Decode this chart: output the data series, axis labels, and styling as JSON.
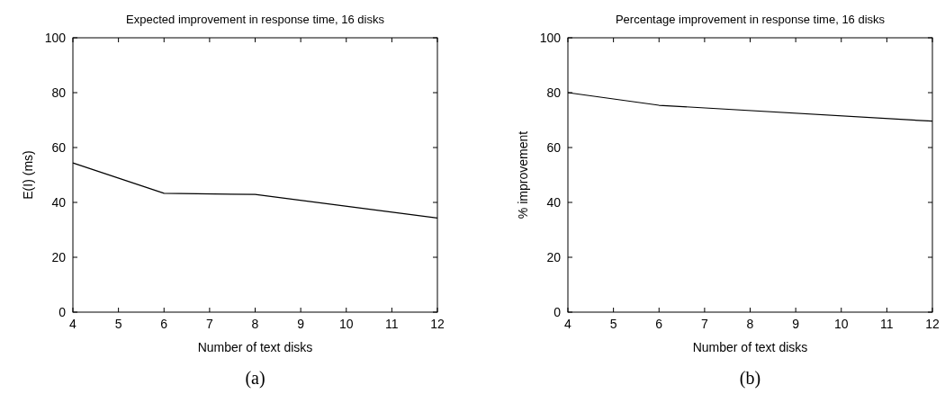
{
  "chart_data": [
    {
      "type": "line",
      "title": "Expected improvement in response time, 16 disks",
      "xlabel": "Number of text disks",
      "ylabel": "E(I) (ms)",
      "x": [
        4,
        6,
        8,
        12
      ],
      "series": [
        {
          "color": "#000000",
          "values": [
            54.4,
            43.3,
            42.9,
            34.3
          ]
        }
      ],
      "xlim": [
        4,
        12
      ],
      "xticks": [
        4,
        5,
        6,
        7,
        8,
        9,
        10,
        11,
        12
      ],
      "ylim": [
        0,
        100
      ],
      "yticks": [
        0,
        20,
        40,
        60,
        80,
        100
      ],
      "grid": false,
      "marker": "none",
      "line_style": "solid",
      "annotations": [
        "(a)"
      ]
    },
    {
      "type": "line",
      "title": "Percentage improvement in response time, 16 disks",
      "xlabel": "Number of text disks",
      "ylabel": "% improvement",
      "x": [
        4,
        6,
        12
      ],
      "series": [
        {
          "color": "#000000",
          "values": [
            80,
            75.4,
            69.6
          ]
        }
      ],
      "xlim": [
        4,
        12
      ],
      "xticks": [
        4,
        5,
        6,
        7,
        8,
        9,
        10,
        11,
        12
      ],
      "ylim": [
        0,
        100
      ],
      "yticks": [
        0,
        20,
        40,
        60,
        80,
        100
      ],
      "grid": false,
      "marker": "none",
      "line_style": "solid",
      "annotations": [
        "(b)"
      ]
    }
  ]
}
